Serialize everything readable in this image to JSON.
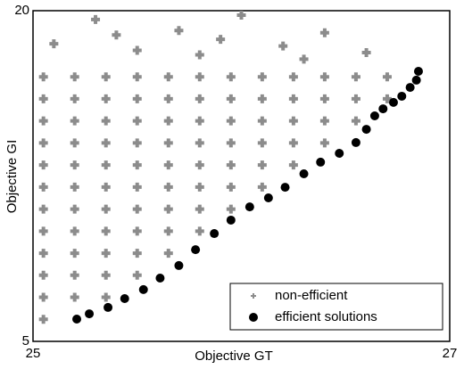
{
  "chart_data": {
    "type": "scatter",
    "xlabel": "Objective GT",
    "ylabel": "Objective GI",
    "xlim": [
      25,
      27
    ],
    "xticks": [
      25,
      27
    ],
    "ylim": [
      5,
      20
    ],
    "yticks": [
      5,
      20
    ],
    "legend": "lower right",
    "series": [
      {
        "name": "non-efficient",
        "color": "#8c8c8c",
        "marker": "+",
        "x": [
          25.05,
          25.05,
          25.05,
          25.05,
          25.05,
          25.05,
          25.05,
          25.05,
          25.05,
          25.05,
          25.05,
          25.05,
          25.2,
          25.2,
          25.2,
          25.2,
          25.2,
          25.2,
          25.2,
          25.2,
          25.2,
          25.2,
          25.2,
          25.35,
          25.35,
          25.35,
          25.35,
          25.35,
          25.35,
          25.35,
          25.35,
          25.35,
          25.35,
          25.35,
          25.5,
          25.5,
          25.5,
          25.5,
          25.5,
          25.5,
          25.5,
          25.5,
          25.5,
          25.5,
          25.65,
          25.65,
          25.65,
          25.65,
          25.65,
          25.65,
          25.65,
          25.65,
          25.65,
          25.8,
          25.8,
          25.8,
          25.8,
          25.8,
          25.8,
          25.8,
          25.8,
          25.95,
          25.95,
          25.95,
          25.95,
          25.95,
          25.95,
          25.95,
          26.1,
          26.1,
          26.1,
          26.1,
          26.1,
          26.1,
          26.25,
          26.25,
          26.25,
          26.25,
          26.25,
          26.4,
          26.4,
          26.4,
          26.4,
          26.55,
          26.55,
          26.55,
          26.7,
          26.7,
          25.1,
          25.3,
          25.5,
          25.7,
          25.9,
          26.0,
          26.2,
          26.4,
          26.6,
          25.4,
          25.8,
          26.3
        ],
        "values": [
          6,
          7,
          8,
          9,
          10,
          11,
          12,
          13,
          14,
          15,
          16,
          17,
          7,
          8,
          9,
          10,
          11,
          12,
          13,
          14,
          15,
          16,
          17,
          7,
          8,
          9,
          10,
          11,
          12,
          13,
          14,
          15,
          16,
          17,
          8,
          9,
          10,
          11,
          12,
          13,
          14,
          15,
          16,
          17,
          9,
          10,
          11,
          12,
          13,
          14,
          15,
          16,
          17,
          10,
          11,
          12,
          13,
          14,
          15,
          16,
          17,
          11,
          12,
          13,
          14,
          15,
          16,
          17,
          12,
          13,
          14,
          15,
          16,
          17,
          13,
          14,
          15,
          16,
          17,
          14,
          15,
          16,
          17,
          15,
          16,
          17,
          16,
          17,
          18.5,
          19.6,
          18.2,
          19.1,
          18.7,
          19.8,
          18.4,
          19.0,
          18.1,
          18.9,
          18.0,
          17.8
        ]
      },
      {
        "name": "efficient solutions",
        "color": "#000000",
        "marker": "o",
        "x": [
          25.21,
          25.27,
          25.36,
          25.44,
          25.53,
          25.61,
          25.7,
          25.78,
          25.87,
          25.95,
          26.04,
          26.13,
          26.21,
          26.3,
          26.38,
          26.47,
          26.55,
          26.6,
          26.64,
          26.68,
          26.73,
          26.77,
          26.81,
          26.84,
          26.85
        ],
        "values": [
          6.01,
          6.25,
          6.54,
          6.94,
          7.35,
          7.87,
          8.44,
          9.16,
          9.89,
          10.5,
          11.1,
          11.51,
          11.99,
          12.6,
          13.13,
          13.53,
          14.02,
          14.62,
          15.23,
          15.55,
          15.84,
          16.12,
          16.52,
          16.85,
          17.25
        ]
      }
    ]
  }
}
